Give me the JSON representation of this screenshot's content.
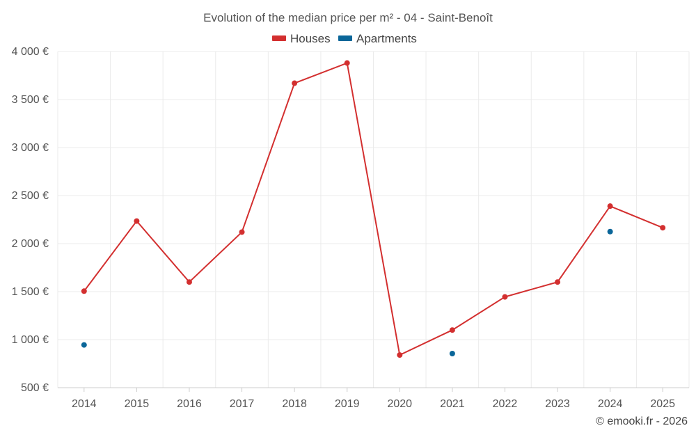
{
  "chart_data": {
    "type": "line",
    "title": "Evolution of the median price per m² - 04 - Saint-Benoît",
    "categories": [
      "2014",
      "2015",
      "2016",
      "2017",
      "2018",
      "2019",
      "2020",
      "2021",
      "2022",
      "2023",
      "2024",
      "2025"
    ],
    "series": [
      {
        "name": "Houses",
        "color": "#d32f2f",
        "style": "line",
        "values": [
          1505,
          2235,
          1600,
          2120,
          3670,
          3880,
          840,
          1100,
          1445,
          1600,
          2390,
          2165
        ]
      },
      {
        "name": "Apartments",
        "color": "#0a6699",
        "style": "points",
        "values": [
          945,
          null,
          null,
          null,
          null,
          null,
          null,
          855,
          null,
          null,
          2125,
          null
        ]
      }
    ],
    "y_ticks": [
      "500 €",
      "1 000 €",
      "1 500 €",
      "2 000 €",
      "2 500 €",
      "3 000 €",
      "3 500 €",
      "4 000 €"
    ],
    "y_tick_values": [
      500,
      1000,
      1500,
      2000,
      2500,
      3000,
      3500,
      4000
    ],
    "ylim": [
      500,
      4000
    ],
    "xlabel": "",
    "ylabel": "",
    "legend_position": "top-center",
    "grid": true
  },
  "credit": "© emooki.fr - 2026"
}
